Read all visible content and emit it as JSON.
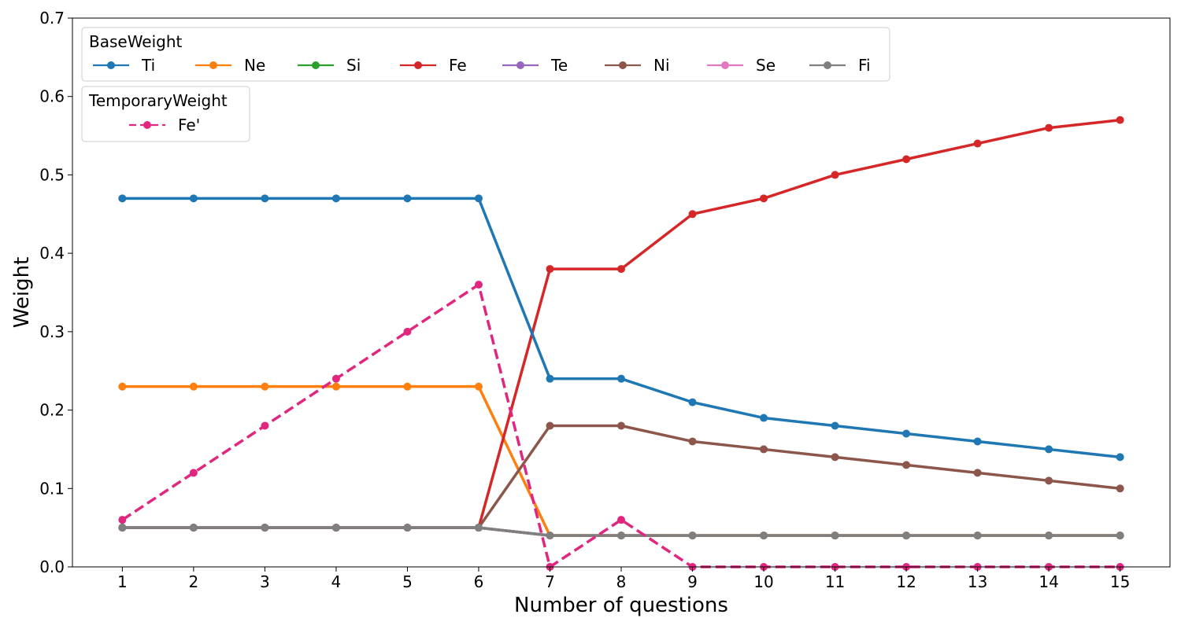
{
  "chart_data": {
    "type": "line",
    "xlabel": "Number of questions",
    "ylabel": "Weight",
    "x": [
      1,
      2,
      3,
      4,
      5,
      6,
      7,
      8,
      9,
      10,
      11,
      12,
      13,
      14,
      15
    ],
    "xlim": [
      0.3,
      15.7
    ],
    "ylim": [
      0,
      0.7
    ],
    "yticks": [
      "0.0",
      "0.1",
      "0.2",
      "0.3",
      "0.4",
      "0.5",
      "0.6",
      "0.7"
    ],
    "grid": false,
    "legends": [
      {
        "title": "BaseWeight",
        "placement": "top-left",
        "entries": [
          "Ti",
          "Ne",
          "Si",
          "Fe",
          "Te",
          "Ni",
          "Se",
          "Fi"
        ]
      },
      {
        "title": "TemporaryWeight",
        "placement": "top-left",
        "entries": [
          "Fe'"
        ]
      }
    ],
    "series": [
      {
        "name": "Si",
        "color": "#2ca02c",
        "dashed": false,
        "values": [
          0.05,
          0.05,
          0.05,
          0.05,
          0.05,
          0.05,
          0.04,
          0.04,
          0.04,
          0.04,
          0.04,
          0.04,
          0.04,
          0.04,
          0.04
        ]
      },
      {
        "name": "Te",
        "color": "#9467bd",
        "dashed": false,
        "values": [
          0.05,
          0.05,
          0.05,
          0.05,
          0.05,
          0.05,
          0.04,
          0.04,
          0.04,
          0.04,
          0.04,
          0.04,
          0.04,
          0.04,
          0.04
        ]
      },
      {
        "name": "Se",
        "color": "#e377c2",
        "dashed": false,
        "values": [
          0.05,
          0.05,
          0.05,
          0.05,
          0.05,
          0.05,
          0.04,
          0.04,
          0.04,
          0.04,
          0.04,
          0.04,
          0.04,
          0.04,
          0.04
        ]
      },
      {
        "name": "Ne",
        "color": "#ff7f0e",
        "dashed": false,
        "values": [
          0.23,
          0.23,
          0.23,
          0.23,
          0.23,
          0.23,
          0.04,
          0.04,
          0.04,
          0.04,
          0.04,
          0.04,
          0.04,
          0.04,
          0.04
        ]
      },
      {
        "name": "Fe",
        "color": "#d62728",
        "dashed": false,
        "values": [
          0.05,
          0.05,
          0.05,
          0.05,
          0.05,
          0.05,
          0.38,
          0.38,
          0.45,
          0.47,
          0.5,
          0.52,
          0.54,
          0.56,
          0.57
        ]
      },
      {
        "name": "Ni",
        "color": "#8c564b",
        "dashed": false,
        "values": [
          0.05,
          0.05,
          0.05,
          0.05,
          0.05,
          0.05,
          0.18,
          0.18,
          0.16,
          0.15,
          0.14,
          0.13,
          0.12,
          0.11,
          0.1
        ]
      },
      {
        "name": "Ti",
        "color": "#1f77b4",
        "dashed": false,
        "values": [
          0.47,
          0.47,
          0.47,
          0.47,
          0.47,
          0.47,
          0.24,
          0.24,
          0.21,
          0.19,
          0.18,
          0.17,
          0.16,
          0.15,
          0.14
        ]
      },
      {
        "name": "Fi",
        "color": "#7f7f7f",
        "dashed": false,
        "values": [
          0.05,
          0.05,
          0.05,
          0.05,
          0.05,
          0.05,
          0.04,
          0.04,
          0.04,
          0.04,
          0.04,
          0.04,
          0.04,
          0.04,
          0.04
        ]
      },
      {
        "name": "Fe'",
        "color": "#e0267f",
        "dashed": true,
        "values": [
          0.06,
          0.12,
          0.18,
          0.24,
          0.3,
          0.36,
          0.0,
          0.06,
          0.0,
          0.0,
          0.0,
          0.0,
          0.0,
          0.0,
          0.0
        ]
      }
    ]
  }
}
